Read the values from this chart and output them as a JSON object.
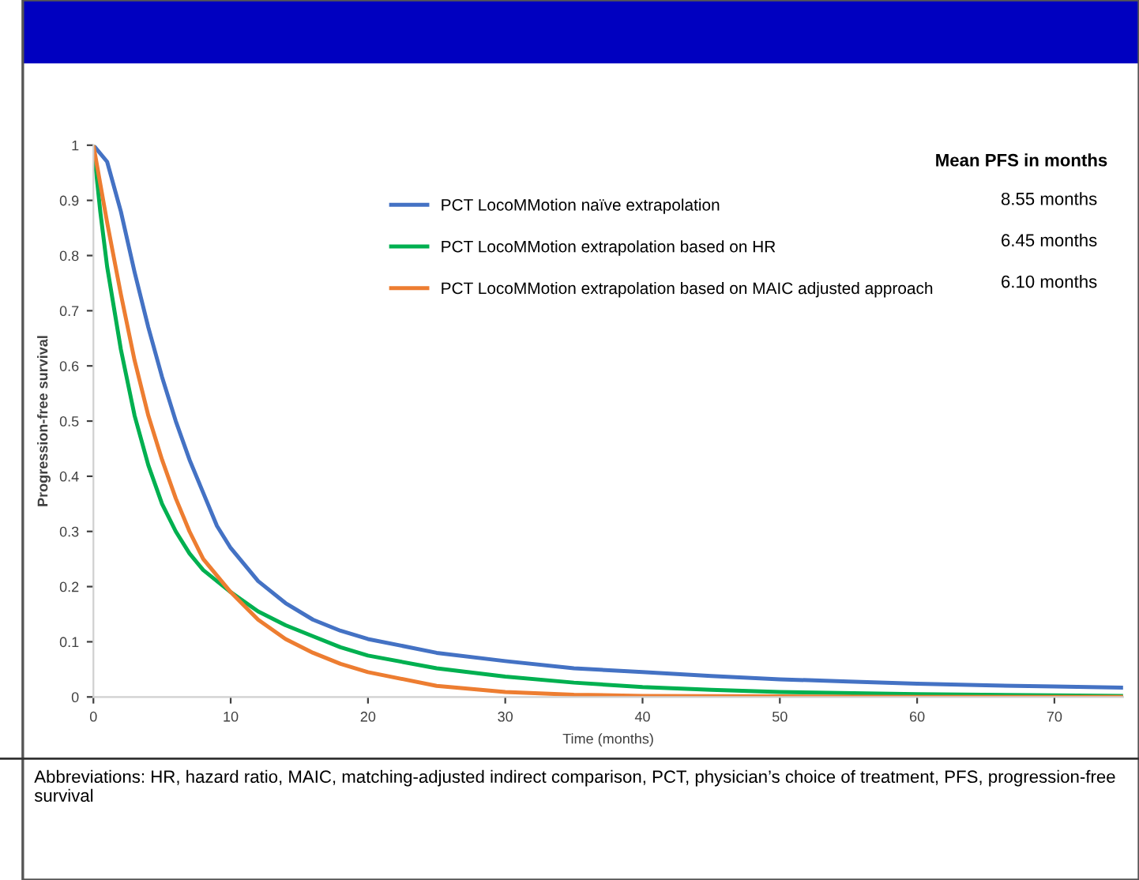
{
  "chart_data": {
    "type": "line",
    "xlabel": "Time (months)",
    "ylabel": "Progression-free survival",
    "xlim": [
      0,
      75
    ],
    "xticks": [
      0,
      10,
      20,
      30,
      40,
      50,
      60,
      70
    ],
    "ylim": [
      0,
      1
    ],
    "yticks": [
      0,
      0.1,
      0.2,
      0.3,
      0.4,
      0.5,
      0.6,
      0.7,
      0.8,
      0.9,
      1
    ],
    "grid": false,
    "legend": "top right",
    "marker": "none",
    "line_style": "solid",
    "series": [
      {
        "name": "PCT LocoMMotion naïve extrapolation",
        "color": "#4472c4",
        "x": [
          0,
          1,
          2,
          3,
          4,
          5,
          6,
          7,
          8,
          9,
          10,
          12,
          14,
          16,
          18,
          20,
          25,
          30,
          35,
          40,
          45,
          50,
          55,
          60,
          65,
          70,
          75
        ],
        "values": [
          1.0,
          0.97,
          0.88,
          0.77,
          0.67,
          0.58,
          0.5,
          0.43,
          0.37,
          0.31,
          0.27,
          0.21,
          0.17,
          0.14,
          0.12,
          0.105,
          0.08,
          0.065,
          0.052,
          0.045,
          0.038,
          0.032,
          0.028,
          0.024,
          0.021,
          0.019,
          0.017
        ]
      },
      {
        "name": "PCT LocoMMotion extrapolation based on HR",
        "color": "#00b050",
        "x": [
          0,
          0.5,
          1,
          2,
          3,
          4,
          5,
          6,
          7,
          8,
          10,
          12,
          14,
          16,
          18,
          20,
          25,
          30,
          35,
          40,
          45,
          50,
          60,
          70,
          75
        ],
        "values": [
          1.0,
          0.88,
          0.78,
          0.63,
          0.51,
          0.42,
          0.35,
          0.3,
          0.26,
          0.23,
          0.19,
          0.155,
          0.13,
          0.11,
          0.09,
          0.075,
          0.052,
          0.037,
          0.026,
          0.018,
          0.013,
          0.009,
          0.005,
          0.003,
          0.002
        ]
      },
      {
        "name": "PCT LocoMMotion extrapolation based on MAIC adjusted approach",
        "color": "#ed7d31",
        "x": [
          0,
          1,
          2,
          3,
          4,
          5,
          6,
          7,
          8,
          9,
          10,
          12,
          14,
          16,
          18,
          20,
          25,
          30,
          35,
          40,
          50,
          60,
          75
        ],
        "values": [
          1.0,
          0.86,
          0.73,
          0.61,
          0.51,
          0.43,
          0.36,
          0.3,
          0.25,
          0.22,
          0.19,
          0.14,
          0.105,
          0.08,
          0.06,
          0.045,
          0.02,
          0.009,
          0.004,
          0.002,
          0.001,
          0,
          0
        ]
      }
    ],
    "annotations": [
      "Mean PFS in months",
      "8.55 months",
      "6.45 months",
      "6.10 months",
      "Abbreviations: HR, hazard ratio, MAIC, matching-adjusted indirect comparison, PCT, physician’s choice of treatment, PFS, progression-free survival"
    ]
  }
}
